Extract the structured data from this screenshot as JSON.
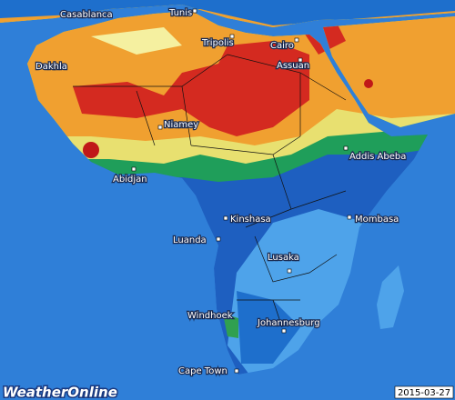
{
  "cities": [
    "Casablanca",
    "Tunis",
    "Tripolis",
    "Cairo",
    "Assuan",
    "Dakhla",
    "Niamey",
    "Addis Abeba",
    "Abidjan",
    "Kinshasa",
    "Mombasa",
    "Luanda",
    "Lusaka",
    "Windhoek",
    "Johannesburg",
    "Cape Town"
  ],
  "logo": "WeatherOnline",
  "date": "2015-03-27"
}
